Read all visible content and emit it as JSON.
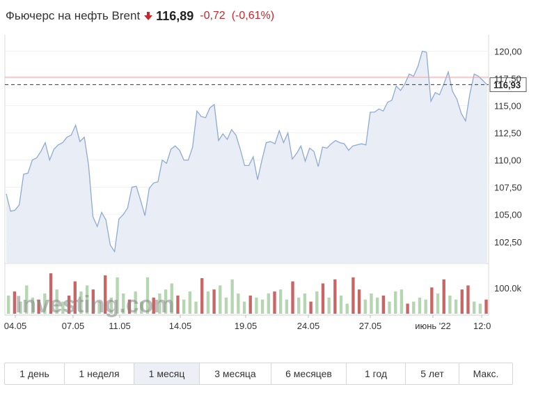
{
  "header": {
    "title": "Фьючерс на нефть Brent",
    "price": "116,89",
    "change": "-0,72",
    "change_pct": "(-0,61%)",
    "direction": "down",
    "down_color": "#c8272d"
  },
  "chart_data": {
    "type": "area",
    "y_ticks": [
      "120,00",
      "117,50",
      "115,00",
      "112,50",
      "110,00",
      "107,50",
      "105,00",
      "102,50"
    ],
    "y_tick_values": [
      120,
      117.5,
      115,
      112.5,
      110,
      107.5,
      105,
      102.5
    ],
    "ylim": [
      100.5,
      121.5
    ],
    "x_labels": [
      "04.05",
      "07.05",
      "11.05",
      "14.05",
      "19.05",
      "24.05",
      "27.05",
      "июнь '22",
      "12:0"
    ],
    "current_value_label": "116,93",
    "current_value": 116.93,
    "reference_line_value": 117.6,
    "volume_tick_label": "100.0k",
    "volume_tick_value": 100000,
    "watermark": "Investing.com",
    "line_color": "#8eaad3",
    "fill_color": "#e9edf5",
    "series": [
      {
        "values": [
          106.9,
          105.3,
          105.4,
          105.9,
          108.7,
          108.8,
          110,
          110.2,
          110.8,
          111.6,
          110,
          111,
          111.4,
          111.6,
          112.1,
          112.3,
          113.2,
          111.7,
          112.1,
          109.5,
          104.8,
          103.9,
          105.2,
          104.5,
          102.2,
          101.6,
          104.6,
          105,
          105.6,
          107.5,
          107.6,
          106.3,
          104.9,
          107.4,
          107.9,
          108,
          110,
          109.7,
          111,
          111.3,
          110.9,
          110,
          110,
          111.2,
          114.5,
          114,
          113.9,
          114.8,
          115.1,
          111.8,
          112.4,
          111.9,
          112.8,
          112.3,
          111,
          109.5,
          109.5,
          110.3,
          108.2,
          110,
          111.6,
          111.7,
          111.5,
          112.7,
          111.6,
          112.5,
          110.1,
          110.6,
          111.3,
          109.9,
          111.1,
          110.8,
          109.4,
          111.2,
          111.1,
          111.5,
          111.8,
          111.6,
          111.5,
          110.9,
          111.3,
          111.4,
          111.5,
          111.4,
          114.4,
          114.4,
          114.7,
          114.5,
          115.3,
          115.5,
          116.8,
          116.4,
          117,
          117.9,
          117.7,
          118.6,
          120,
          119.9,
          115.4,
          116.2,
          116,
          117,
          118.1,
          116.3,
          115.6,
          114.3,
          113.6,
          116.1,
          117.9,
          117.7,
          117.3,
          116.9
        ]
      }
    ],
    "volume_bars": [
      {
        "v": 0.45,
        "c": "g"
      },
      {
        "v": 0.55,
        "c": "r"
      },
      {
        "v": 0.3,
        "c": "g"
      },
      {
        "v": 0.7,
        "c": "g"
      },
      {
        "v": 0.4,
        "c": "g"
      },
      {
        "v": 0.35,
        "c": "r"
      },
      {
        "v": 0.5,
        "c": "g"
      },
      {
        "v": 1.0,
        "c": "r"
      },
      {
        "v": 0.6,
        "c": "g"
      },
      {
        "v": 0.3,
        "c": "g"
      },
      {
        "v": 0.45,
        "c": "r"
      },
      {
        "v": 0.8,
        "c": "r"
      },
      {
        "v": 0.55,
        "c": "g"
      },
      {
        "v": 0.7,
        "c": "g"
      },
      {
        "v": 0.6,
        "c": "r"
      },
      {
        "v": 0.3,
        "c": "g"
      },
      {
        "v": 0.95,
        "c": "r"
      },
      {
        "v": 0.4,
        "c": "g"
      },
      {
        "v": 0.9,
        "c": "g"
      },
      {
        "v": 0.5,
        "c": "g"
      },
      {
        "v": 0.35,
        "c": "r"
      },
      {
        "v": 0.55,
        "c": "g"
      },
      {
        "v": 0.3,
        "c": "g"
      },
      {
        "v": 0.9,
        "c": "g"
      },
      {
        "v": 0.4,
        "c": "r"
      },
      {
        "v": 0.5,
        "c": "g"
      },
      {
        "v": 0.6,
        "c": "g"
      },
      {
        "v": 0.75,
        "c": "g"
      },
      {
        "v": 0.45,
        "c": "r"
      },
      {
        "v": 0.35,
        "c": "g"
      },
      {
        "v": 0.55,
        "c": "g"
      },
      {
        "v": 0.3,
        "c": "g"
      },
      {
        "v": 0.88,
        "c": "r"
      },
      {
        "v": 0.55,
        "c": "g"
      },
      {
        "v": 0.6,
        "c": "r"
      },
      {
        "v": 0.7,
        "c": "g"
      },
      {
        "v": 0.4,
        "c": "g"
      },
      {
        "v": 0.85,
        "c": "g"
      },
      {
        "v": 0.5,
        "c": "g"
      },
      {
        "v": 0.3,
        "c": "g"
      },
      {
        "v": 0.45,
        "c": "r"
      },
      {
        "v": 0.4,
        "c": "g"
      },
      {
        "v": 0.35,
        "c": "g"
      },
      {
        "v": 0.5,
        "c": "g"
      },
      {
        "v": 0.55,
        "c": "r"
      },
      {
        "v": 0.6,
        "c": "g"
      },
      {
        "v": 0.35,
        "c": "g"
      },
      {
        "v": 0.8,
        "c": "r"
      },
      {
        "v": 0.4,
        "c": "g"
      },
      {
        "v": 0.5,
        "c": "g"
      },
      {
        "v": 0.3,
        "c": "r"
      },
      {
        "v": 0.55,
        "c": "g"
      },
      {
        "v": 0.75,
        "c": "r"
      },
      {
        "v": 0.4,
        "c": "g"
      },
      {
        "v": 0.85,
        "c": "r"
      },
      {
        "v": 0.45,
        "c": "g"
      },
      {
        "v": 0.25,
        "c": "g"
      },
      {
        "v": 0.9,
        "c": "r"
      },
      {
        "v": 0.6,
        "c": "r"
      },
      {
        "v": 0.35,
        "c": "g"
      },
      {
        "v": 0.5,
        "c": "g"
      },
      {
        "v": 0.4,
        "c": "g"
      },
      {
        "v": 0.45,
        "c": "r"
      },
      {
        "v": 0.3,
        "c": "g"
      },
      {
        "v": 0.55,
        "c": "g"
      },
      {
        "v": 0.6,
        "c": "g"
      },
      {
        "v": 0.25,
        "c": "r"
      },
      {
        "v": 0.3,
        "c": "g"
      },
      {
        "v": 0.4,
        "c": "g"
      },
      {
        "v": 0.35,
        "c": "g"
      },
      {
        "v": 0.65,
        "c": "r"
      },
      {
        "v": 0.5,
        "c": "g"
      },
      {
        "v": 0.85,
        "c": "r"
      },
      {
        "v": 0.45,
        "c": "g"
      },
      {
        "v": 0.35,
        "c": "g"
      },
      {
        "v": 0.6,
        "c": "r"
      },
      {
        "v": 0.7,
        "c": "r"
      },
      {
        "v": 0.3,
        "c": "g"
      },
      {
        "v": 0.25,
        "c": "g"
      },
      {
        "v": 0.35,
        "c": "r"
      }
    ],
    "grid": true
  },
  "periods": {
    "items": [
      {
        "label": "1 день"
      },
      {
        "label": "1 неделя"
      },
      {
        "label": "1 месяц"
      },
      {
        "label": "3 месяца"
      },
      {
        "label": "6 месяцев"
      },
      {
        "label": "1 год"
      },
      {
        "label": "5 лет"
      },
      {
        "label": "Макс."
      }
    ],
    "active_index": 2
  }
}
